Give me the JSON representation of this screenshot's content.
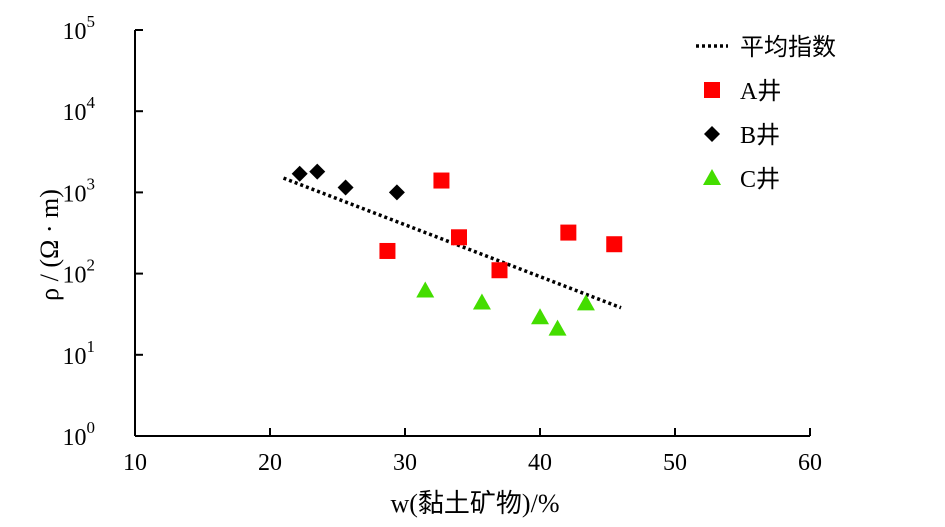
{
  "chart_data": {
    "type": "scatter",
    "xlabel": "w(黏土矿物)/%",
    "ylabel": "ρ / (Ω · m)",
    "xlim": [
      10,
      60
    ],
    "ylim": [
      1,
      100000
    ],
    "yscale": "log",
    "x_ticks": [
      10,
      20,
      30,
      40,
      50,
      60
    ],
    "y_ticks": [
      {
        "value": 1,
        "base": "10",
        "exp": "0"
      },
      {
        "value": 10,
        "base": "10",
        "exp": "1"
      },
      {
        "value": 100,
        "base": "10",
        "exp": "2"
      },
      {
        "value": 1000,
        "base": "10",
        "exp": "3"
      },
      {
        "value": 10000,
        "base": "10",
        "exp": "4"
      },
      {
        "value": 100000,
        "base": "10",
        "exp": "5"
      }
    ],
    "grid": false,
    "legend_position": "top-right",
    "series": [
      {
        "name": "平均指数",
        "kind": "trendline",
        "color": "#000000",
        "points": [
          {
            "x": 21,
            "y": 1500
          },
          {
            "x": 46,
            "y": 38
          }
        ]
      },
      {
        "name": "A井",
        "kind": "square",
        "color": "#ff0000",
        "points": [
          {
            "x": 28.7,
            "y": 190
          },
          {
            "x": 32.7,
            "y": 1400
          },
          {
            "x": 34.0,
            "y": 280
          },
          {
            "x": 37.0,
            "y": 110
          },
          {
            "x": 42.1,
            "y": 320
          },
          {
            "x": 45.5,
            "y": 230
          }
        ]
      },
      {
        "name": "B井",
        "kind": "diamond",
        "color": "#000000",
        "points": [
          {
            "x": 22.2,
            "y": 1700
          },
          {
            "x": 23.5,
            "y": 1800
          },
          {
            "x": 25.6,
            "y": 1150
          },
          {
            "x": 29.4,
            "y": 1000
          }
        ]
      },
      {
        "name": "C井",
        "kind": "triangle",
        "color": "#44dd00",
        "points": [
          {
            "x": 31.5,
            "y": 62
          },
          {
            "x": 35.7,
            "y": 44
          },
          {
            "x": 40.0,
            "y": 29
          },
          {
            "x": 41.3,
            "y": 21
          },
          {
            "x": 43.4,
            "y": 43
          }
        ]
      }
    ]
  }
}
